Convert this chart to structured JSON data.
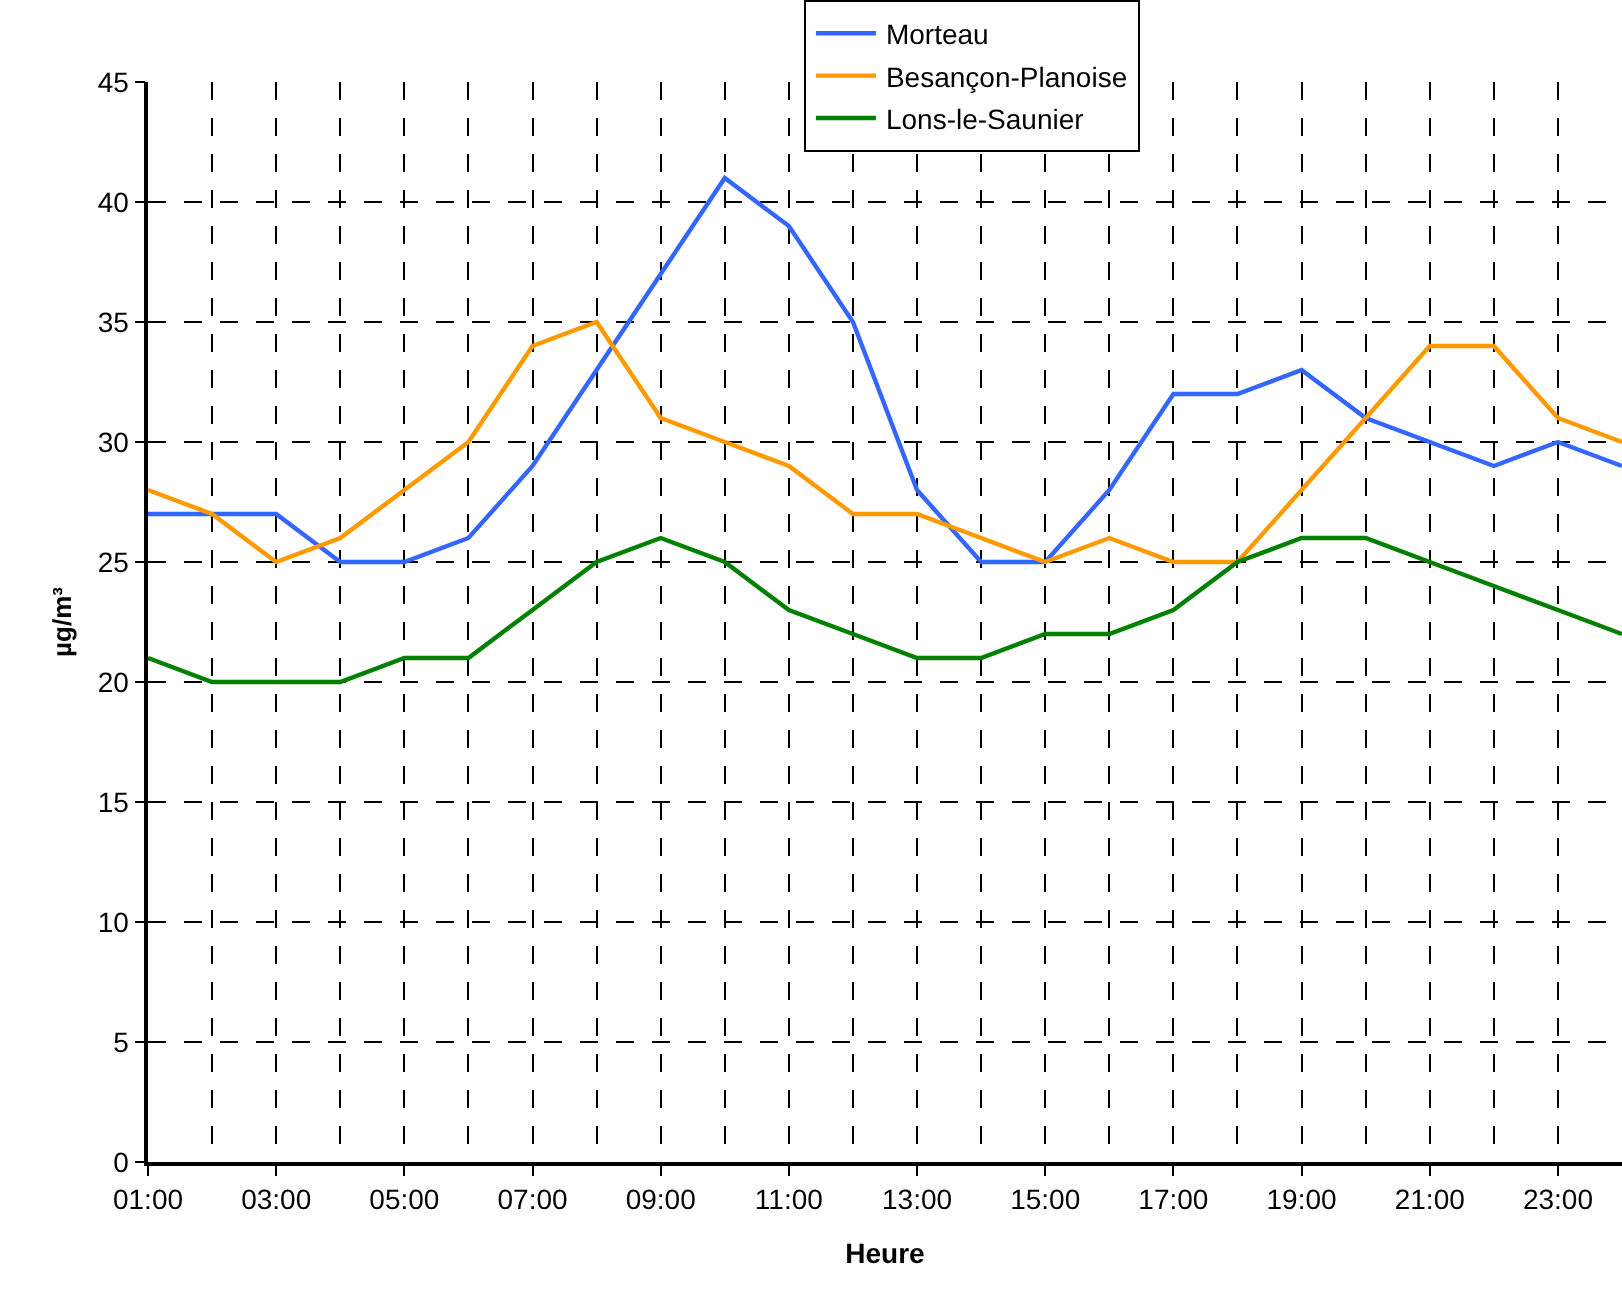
{
  "chart_data": {
    "type": "line",
    "xlabel": "Heure",
    "ylabel": "µg/m³",
    "categories": [
      "01:00",
      null,
      "03:00",
      null,
      "05:00",
      null,
      "07:00",
      null,
      "09:00",
      null,
      "11:00",
      null,
      "13:00",
      null,
      "15:00",
      null,
      "17:00",
      null,
      "19:00",
      null,
      "21:00",
      null,
      "23:00",
      null
    ],
    "series": [
      {
        "name": "Morteau",
        "color": "#3366ff",
        "values": [
          27,
          27,
          27,
          25,
          25,
          26,
          29,
          33,
          37,
          41,
          39,
          35,
          28,
          25,
          25,
          28,
          32,
          32,
          33,
          31,
          30,
          29,
          30,
          29
        ]
      },
      {
        "name": "Besançon-Planoise",
        "color": "#ff9900",
        "values": [
          28,
          27,
          25,
          26,
          28,
          30,
          34,
          35,
          31,
          30,
          29,
          27,
          27,
          26,
          25,
          26,
          25,
          25,
          28,
          31,
          34,
          34,
          31,
          30
        ]
      },
      {
        "name": "Lons-le-Saunier",
        "color": "#008000",
        "values": [
          21,
          20,
          20,
          20,
          21,
          21,
          23,
          25,
          26,
          25,
          23,
          22,
          21,
          21,
          22,
          22,
          23,
          25,
          26,
          26,
          25,
          24,
          23,
          22
        ]
      }
    ],
    "ylim": [
      0,
      45
    ],
    "yticks": [
      0,
      5,
      10,
      15,
      20,
      25,
      30,
      35,
      40,
      45
    ],
    "grid": true,
    "legend": "top",
    "marker": "none",
    "line_style": "solid"
  }
}
